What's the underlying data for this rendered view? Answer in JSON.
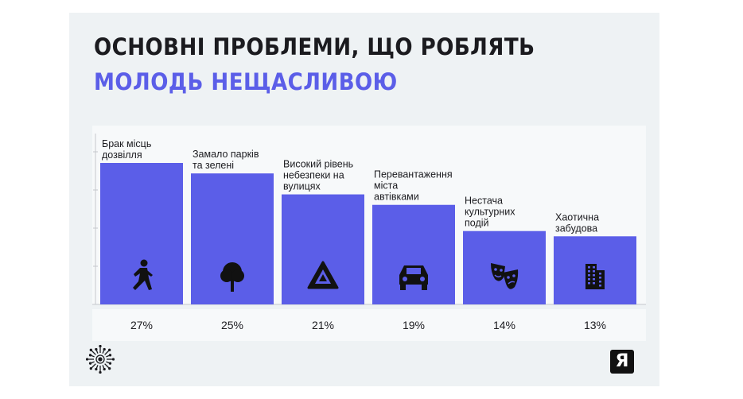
{
  "title_line1": "ОСНОВНІ ПРОБЛЕМИ, ЩО РОБЛЯТЬ",
  "title_line2": "МОЛОДЬ НЕЩАСЛИВОЮ",
  "colors": {
    "bar": "#5b5ee8",
    "title_accent": "#5b5ee8",
    "background": "#eef2f4",
    "plot_background": "#f7f9fa"
  },
  "logo_right_text": "Я",
  "chart_data": {
    "type": "bar",
    "categories": [
      [
        "Брак місць",
        "дозвілля"
      ],
      [
        "Замало парків",
        "та зелені"
      ],
      [
        "Високий рівень",
        "небезпеки на",
        "вулицях"
      ],
      [
        "Перевантаження",
        "міста",
        "автівками"
      ],
      [
        "Нестача",
        "культурних",
        "подій"
      ],
      [
        "Хаотична",
        "забудова"
      ]
    ],
    "values": [
      27,
      25,
      21,
      19,
      14,
      13
    ],
    "value_labels": [
      "27%",
      "25%",
      "21%",
      "19%",
      "14%",
      "13%"
    ],
    "icons": [
      "running-child-icon",
      "tree-icon",
      "warning-triangle-icon",
      "car-icon",
      "theater-masks-icon",
      "building-icon"
    ],
    "ylim": [
      0,
      30
    ],
    "grid": false,
    "legend": "none"
  }
}
